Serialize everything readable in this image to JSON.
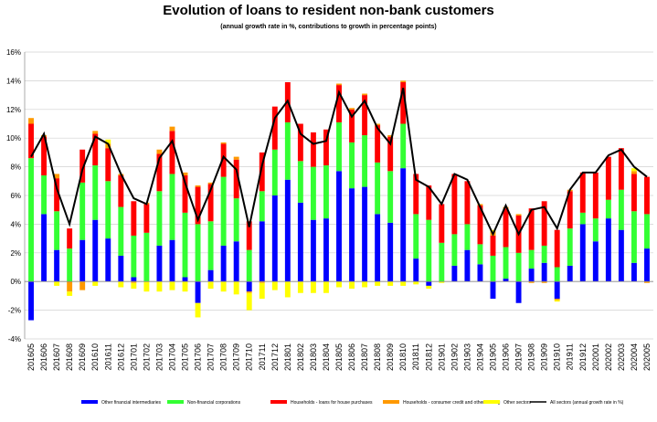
{
  "chart_data": {
    "type": "bar",
    "title": "Evolution of loans to resident non-bank customers",
    "subtitle": "(annual growth rate in %, contributions to growth in percentage points)",
    "xlabel": "",
    "ylabel": "",
    "ylim": [
      -4,
      16
    ],
    "yticks": [
      "-4%",
      "-2%",
      "0%",
      "2%",
      "4%",
      "6%",
      "8%",
      "10%",
      "12%",
      "14%",
      "16%"
    ],
    "grid": true,
    "legend_position": "bottom",
    "categories": [
      "201605",
      "201606",
      "201607",
      "201608",
      "201609",
      "201610",
      "201611",
      "201612",
      "201701",
      "201702",
      "201703",
      "201704",
      "201705",
      "201706",
      "201707",
      "201708",
      "201709",
      "201710",
      "201711",
      "201712",
      "201801",
      "201802",
      "201803",
      "201804",
      "201805",
      "201806",
      "201807",
      "201808",
      "201809",
      "201810",
      "201811",
      "201812",
      "201901",
      "201902",
      "201903",
      "201904",
      "201905",
      "201906",
      "201907",
      "201908",
      "201909",
      "201910",
      "201911",
      "201912",
      "202001",
      "202002",
      "202003",
      "202004",
      "202005"
    ],
    "series": [
      {
        "name": "Other financial intermediaries",
        "color": "#0000ff",
        "values": [
          -2.7,
          4.7,
          2.2,
          0.0,
          2.9,
          4.3,
          3.0,
          1.8,
          0.3,
          0.0,
          2.5,
          2.9,
          0.3,
          -1.5,
          0.8,
          2.5,
          2.8,
          -0.7,
          4.2,
          6.0,
          7.1,
          5.5,
          4.3,
          4.4,
          7.7,
          6.5,
          6.6,
          4.7,
          4.1,
          7.9,
          1.6,
          -0.3,
          0.0,
          1.1,
          2.2,
          1.2,
          -1.2,
          0.2,
          -1.5,
          0.9,
          1.3,
          -1.2,
          1.1,
          4.0,
          2.8,
          4.4,
          3.6,
          1.3,
          2.3
        ]
      },
      {
        "name": "Non-financial corporations",
        "color": "#33ff33",
        "values": [
          8.6,
          2.7,
          2.7,
          2.3,
          4.0,
          3.8,
          4.0,
          3.4,
          2.9,
          3.4,
          3.8,
          4.6,
          4.5,
          4.0,
          3.4,
          4.8,
          3.0,
          2.2,
          2.1,
          3.2,
          4.0,
          2.9,
          3.7,
          3.7,
          3.4,
          3.2,
          3.6,
          3.6,
          3.6,
          3.1,
          3.1,
          4.3,
          2.7,
          2.2,
          1.8,
          1.4,
          1.8,
          2.2,
          2.0,
          1.3,
          1.2,
          1.0,
          2.6,
          0.8,
          1.6,
          1.3,
          2.8,
          3.6,
          2.4
        ]
      },
      {
        "name": "Households - loans for house purchases",
        "color": "#ff0000",
        "values": [
          2.4,
          2.7,
          2.3,
          1.4,
          2.3,
          2.2,
          2.3,
          2.2,
          2.4,
          2.0,
          2.6,
          3.0,
          2.6,
          2.6,
          2.6,
          2.3,
          2.7,
          2.0,
          2.7,
          3.0,
          2.8,
          2.6,
          2.4,
          2.5,
          2.6,
          2.3,
          2.8,
          2.6,
          2.4,
          2.9,
          2.8,
          2.4,
          2.7,
          4.2,
          3.0,
          2.7,
          1.4,
          2.7,
          2.6,
          2.9,
          3.1,
          2.6,
          2.6,
          2.8,
          3.2,
          3.0,
          2.9,
          2.6,
          2.6
        ]
      },
      {
        "name": "Households - consumer credit and other lending",
        "color": "#ff9900",
        "values": [
          0.4,
          0.1,
          0.3,
          -0.7,
          -0.6,
          0.2,
          0.3,
          0.1,
          -0.1,
          0.1,
          0.3,
          0.3,
          0.2,
          0.1,
          0.1,
          0.1,
          0.2,
          -0.1,
          -0.1,
          0.0,
          0.0,
          0.0,
          0.0,
          0.0,
          0.1,
          0.1,
          0.1,
          0.1,
          0.1,
          0.1,
          0.0,
          0.0,
          0.0,
          0.0,
          0.0,
          0.1,
          0.3,
          0.1,
          0.1,
          -0.1,
          -0.1,
          -0.1,
          0.1,
          0.0,
          0.0,
          0.0,
          0.0,
          0.2,
          -0.1
        ]
      },
      {
        "name": "Other sectors",
        "color": "#ffff00",
        "values": [
          0.0,
          0.0,
          -0.3,
          -0.3,
          0.0,
          -0.3,
          0.3,
          -0.4,
          -0.4,
          -0.7,
          -0.7,
          -0.6,
          -0.7,
          -1.0,
          -0.5,
          -0.7,
          -0.9,
          -1.2,
          -1.1,
          -0.6,
          -1.1,
          -0.8,
          -0.8,
          -0.8,
          -0.4,
          -0.5,
          -0.4,
          -0.3,
          -0.3,
          -0.3,
          -0.2,
          -0.2,
          -0.1,
          0.0,
          0.0,
          0.0,
          0.1,
          0.0,
          0.0,
          0.0,
          0.0,
          -0.1,
          0.0,
          0.0,
          0.0,
          0.0,
          0.0,
          0.2,
          0.0
        ]
      },
      {
        "name": "All sectors (annual growth rate in %)",
        "color": "#000000",
        "type": "line",
        "values": [
          8.7,
          10.3,
          6.5,
          4.0,
          7.8,
          10.1,
          9.6,
          7.5,
          5.8,
          5.4,
          8.6,
          9.8,
          6.9,
          4.3,
          6.4,
          8.7,
          7.8,
          3.8,
          8.1,
          11.4,
          12.6,
          10.3,
          9.6,
          9.8,
          13.2,
          11.5,
          12.6,
          10.7,
          9.6,
          13.5,
          7.1,
          6.6,
          5.4,
          7.5,
          7.1,
          5.2,
          3.3,
          5.3,
          3.3,
          5.0,
          5.2,
          3.7,
          6.4,
          7.6,
          7.6,
          8.8,
          9.2,
          8.0,
          7.3
        ]
      }
    ]
  }
}
